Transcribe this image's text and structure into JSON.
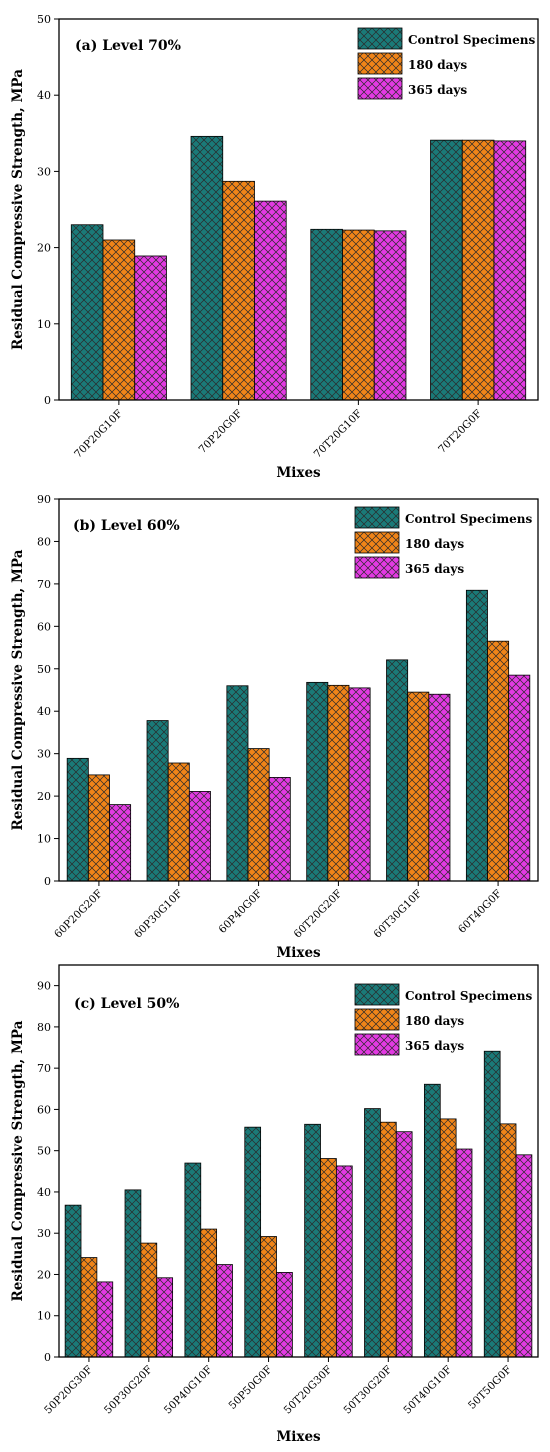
{
  "colors": {
    "control": "#1a7a78",
    "d180": "#f08418",
    "d365": "#e23ae2",
    "hatch": "#2a2a2a"
  },
  "chart_data": [
    {
      "type": "bar",
      "panel_label": "(a)  Level 70%",
      "xlabel": "Mixes",
      "ylabel": "Residual Compressive Strength, MPa",
      "ylim": [
        0,
        50
      ],
      "yticks": [
        0,
        10,
        20,
        30,
        40,
        50
      ],
      "legend_position": "top-right",
      "categories": [
        "70P20G10F",
        "70P20G0F",
        "70T20G10F",
        "70T20G0F"
      ],
      "series": [
        {
          "name": "Control Specimens",
          "values": [
            23.0,
            34.6,
            22.4,
            34.1
          ]
        },
        {
          "name": "180 days",
          "values": [
            21.0,
            28.7,
            22.3,
            34.1
          ]
        },
        {
          "name": "365 days",
          "values": [
            18.9,
            26.1,
            22.2,
            34.0
          ]
        }
      ]
    },
    {
      "type": "bar",
      "panel_label": "(b)  Level 60%",
      "xlabel": "Mixes",
      "ylabel": "Residual Compressive Strength, MPa",
      "ylim": [
        0,
        90
      ],
      "yticks": [
        0,
        10,
        20,
        30,
        40,
        50,
        60,
        70,
        80,
        90
      ],
      "legend_position": "top-right",
      "categories": [
        "60P20G20F",
        "60P30G10F",
        "60P40G0F",
        "60T20G20F",
        "60T30G10F",
        "60T40G0F"
      ],
      "series": [
        {
          "name": "Control Specimens",
          "values": [
            28.9,
            37.8,
            46.0,
            46.8,
            52.1,
            68.5
          ]
        },
        {
          "name": "180 days",
          "values": [
            25.0,
            27.8,
            31.2,
            46.1,
            44.5,
            56.5
          ]
        },
        {
          "name": "365 days",
          "values": [
            18.0,
            21.1,
            24.4,
            45.5,
            44.0,
            48.5
          ]
        }
      ]
    },
    {
      "type": "bar",
      "panel_label": "(c)  Level 50%",
      "xlabel": "Mixes",
      "ylabel": "Residual Compressive Strength, MPa",
      "ylim": [
        0,
        95
      ],
      "yticks": [
        0,
        10,
        20,
        30,
        40,
        50,
        60,
        70,
        80,
        90
      ],
      "legend_position": "top-right",
      "categories": [
        "50P20G30F",
        "50P30G20F",
        "50P40G10F",
        "50P50G0F",
        "50T20G30F",
        "50T30G20F",
        "50T40G10F",
        "50T50G0F"
      ],
      "series": [
        {
          "name": "Control Specimens",
          "values": [
            36.8,
            40.5,
            47.0,
            55.7,
            56.4,
            60.2,
            66.1,
            74.1
          ]
        },
        {
          "name": "180 days",
          "values": [
            24.1,
            27.6,
            31.0,
            29.2,
            48.1,
            56.9,
            57.7,
            56.5
          ]
        },
        {
          "name": "365 days",
          "values": [
            18.2,
            19.2,
            22.4,
            20.5,
            46.3,
            54.6,
            50.4,
            49.0
          ]
        }
      ]
    }
  ]
}
